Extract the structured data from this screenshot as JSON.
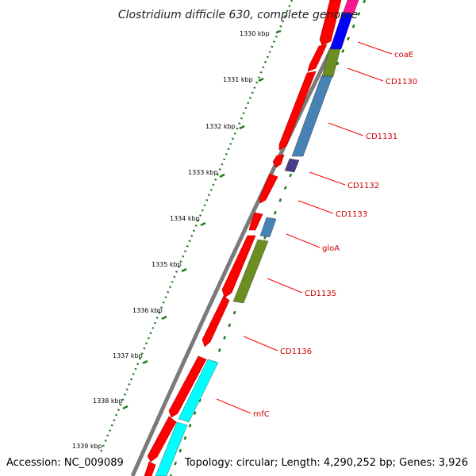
{
  "title": "Clostridium difficile 630, complete genome",
  "accession_text": "Accession: NC_009089",
  "summary_text": "Topology: circular; Length: 4,290,252 bp; Genes: 3,926",
  "colors": {
    "backbone": "#7a7a7a",
    "forward_gene": "#ff0000",
    "tick": "#1f7a1f",
    "label": "#cc0000",
    "leader": "#ff0000"
  },
  "kbp_ticks": [
    "1330 kbp",
    "1331 kbp",
    "1332 kbp",
    "1333 kbp",
    "1334 kbp",
    "1335 kbp",
    "1336 kbp",
    "1337 kbp",
    "1338 kbp",
    "1339 kbp"
  ],
  "gene_labels": [
    "coaE",
    "CD1130",
    "CD1131",
    "CD1132",
    "CD1133",
    "gloA",
    "CD1135",
    "CD1136",
    "rnfC"
  ],
  "reverse_gene_colors": [
    "#ff1493",
    "#0000ff",
    "#6b8e23",
    "#4682b4",
    "#483d8b",
    "#4682b4",
    "#6b8e23",
    "#00ffff",
    "#00ffff"
  ]
}
